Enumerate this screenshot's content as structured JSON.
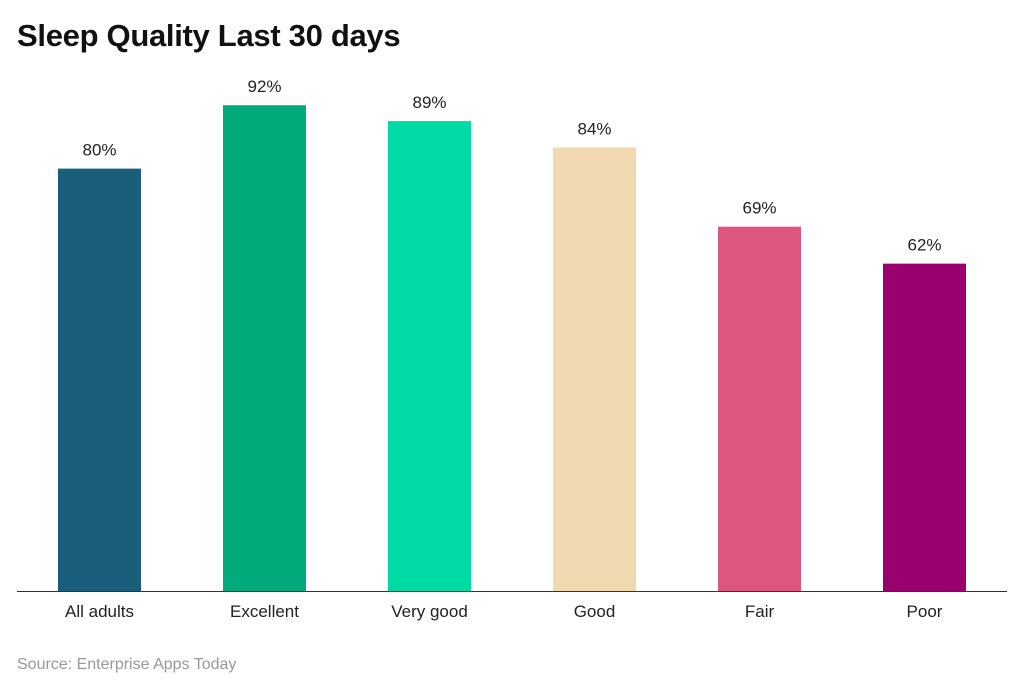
{
  "chart_data": {
    "type": "bar",
    "title": "Sleep Quality Last 30 days",
    "categories": [
      "All adults",
      "Excellent",
      "Very good",
      "Good",
      "Fair",
      "Poor"
    ],
    "values": [
      80,
      92,
      89,
      84,
      69,
      62
    ],
    "data_labels": [
      "80%",
      "92%",
      "89%",
      "84%",
      "69%",
      "62%"
    ],
    "colors": [
      "#195e7a",
      "#03aa7c",
      "#00dba6",
      "#f0d9b0",
      "#dc5680",
      "#9b006f"
    ],
    "ylim": [
      0,
      100
    ],
    "grid": false,
    "xlabel": "",
    "ylabel": "",
    "source": "Source: Enterprise Apps Today"
  }
}
